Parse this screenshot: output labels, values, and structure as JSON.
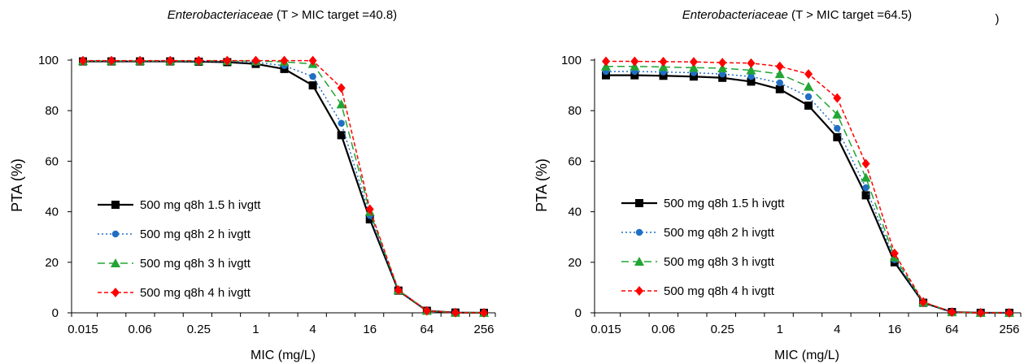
{
  "chart_data": [
    {
      "type": "line",
      "title_italic": "Enterobacteriaceae",
      "title_rest": " (T > MIC target =40.8)",
      "xlabel": "MIC (mg/L)",
      "ylabel": "PTA (%)",
      "ylim": [
        0,
        100
      ],
      "yticks": [
        "0",
        "20",
        "40",
        "60",
        "80",
        "100"
      ],
      "x_scale": "log2",
      "x": [
        0.015,
        0.03,
        0.06,
        0.125,
        0.25,
        0.5,
        1,
        2,
        4,
        8,
        16,
        32,
        64,
        128,
        256
      ],
      "x_tick_labels": [
        "0.015",
        "0.06",
        "0.25",
        "1",
        "4",
        "16",
        "64",
        "256"
      ],
      "legend_position": "left-middle",
      "series": [
        {
          "name": "500 mg q8h 1.5 h ivgtt",
          "color": "#000000",
          "marker": "square",
          "dash": "solid",
          "values": [
            99.5,
            99.5,
            99.5,
            99.5,
            99.4,
            99.2,
            98.5,
            96.5,
            90.0,
            70.3,
            37.0,
            8.8,
            0.8,
            0.1,
            0.0
          ]
        },
        {
          "name": "500 mg q8h 2 h ivgtt",
          "color": "#1f6fc4",
          "marker": "circle",
          "dash": "dotted",
          "values": [
            99.6,
            99.6,
            99.6,
            99.6,
            99.5,
            99.5,
            99.1,
            97.8,
            93.5,
            75.0,
            38.5,
            8.9,
            0.8,
            0.1,
            0.0
          ]
        },
        {
          "name": "500 mg q8h 3 h ivgtt",
          "color": "#22a534",
          "marker": "triangle",
          "dash": "dashed",
          "values": [
            99.7,
            99.7,
            99.7,
            99.7,
            99.7,
            99.7,
            99.6,
            99.3,
            98.5,
            82.5,
            40.0,
            9.0,
            0.8,
            0.1,
            0.0
          ]
        },
        {
          "name": "500 mg q8h 4 h ivgtt",
          "color": "#ff0000",
          "marker": "diamond",
          "dash": "dashdot",
          "values": [
            99.8,
            99.8,
            99.8,
            99.8,
            99.8,
            99.8,
            99.8,
            99.8,
            99.8,
            89.0,
            41.0,
            9.0,
            0.8,
            0.1,
            0.0
          ]
        }
      ]
    },
    {
      "type": "line",
      "title_italic": "Enterobacteriaceae",
      "title_rest": " (T > MIC target =64.5)",
      "xlabel": "MIC (mg/L)",
      "ylabel": "PTA (%)",
      "ylim": [
        0,
        100
      ],
      "yticks": [
        "0",
        "20",
        "40",
        "60",
        "80",
        "100"
      ],
      "x_scale": "log2",
      "x": [
        0.015,
        0.03,
        0.06,
        0.125,
        0.25,
        0.5,
        1,
        2,
        4,
        8,
        16,
        32,
        64,
        128,
        256
      ],
      "x_tick_labels": [
        "0.015",
        "0.06",
        "0.25",
        "1",
        "4",
        "16",
        "64",
        "256"
      ],
      "legend_position": "left-middle",
      "series": [
        {
          "name": "500 mg q8h 1.5 h ivgtt",
          "color": "#000000",
          "marker": "square",
          "dash": "solid",
          "values": [
            94.0,
            94.0,
            93.8,
            93.5,
            93.0,
            91.5,
            88.5,
            82.0,
            69.5,
            46.5,
            20.0,
            4.0,
            0.3,
            0.0,
            0.0
          ]
        },
        {
          "name": "500 mg q8h 2 h ivgtt",
          "color": "#1f6fc4",
          "marker": "circle",
          "dash": "dotted",
          "values": [
            95.5,
            95.5,
            95.3,
            95.0,
            94.5,
            93.5,
            91.0,
            85.5,
            73.0,
            49.5,
            21.0,
            4.0,
            0.3,
            0.0,
            0.0
          ]
        },
        {
          "name": "500 mg q8h 3 h ivgtt",
          "color": "#22a534",
          "marker": "triangle",
          "dash": "dashed",
          "values": [
            97.5,
            97.5,
            97.3,
            97.0,
            96.8,
            96.0,
            94.5,
            89.5,
            78.5,
            53.5,
            22.0,
            4.2,
            0.3,
            0.0,
            0.0
          ]
        },
        {
          "name": "500 mg q8h 4 h ivgtt",
          "color": "#ff0000",
          "marker": "diamond",
          "dash": "dashdot",
          "values": [
            99.5,
            99.5,
            99.4,
            99.3,
            99.0,
            98.8,
            97.5,
            94.5,
            85.0,
            59.0,
            23.5,
            4.3,
            0.3,
            0.0,
            0.0
          ]
        }
      ]
    }
  ],
  "stray_mark": ")"
}
